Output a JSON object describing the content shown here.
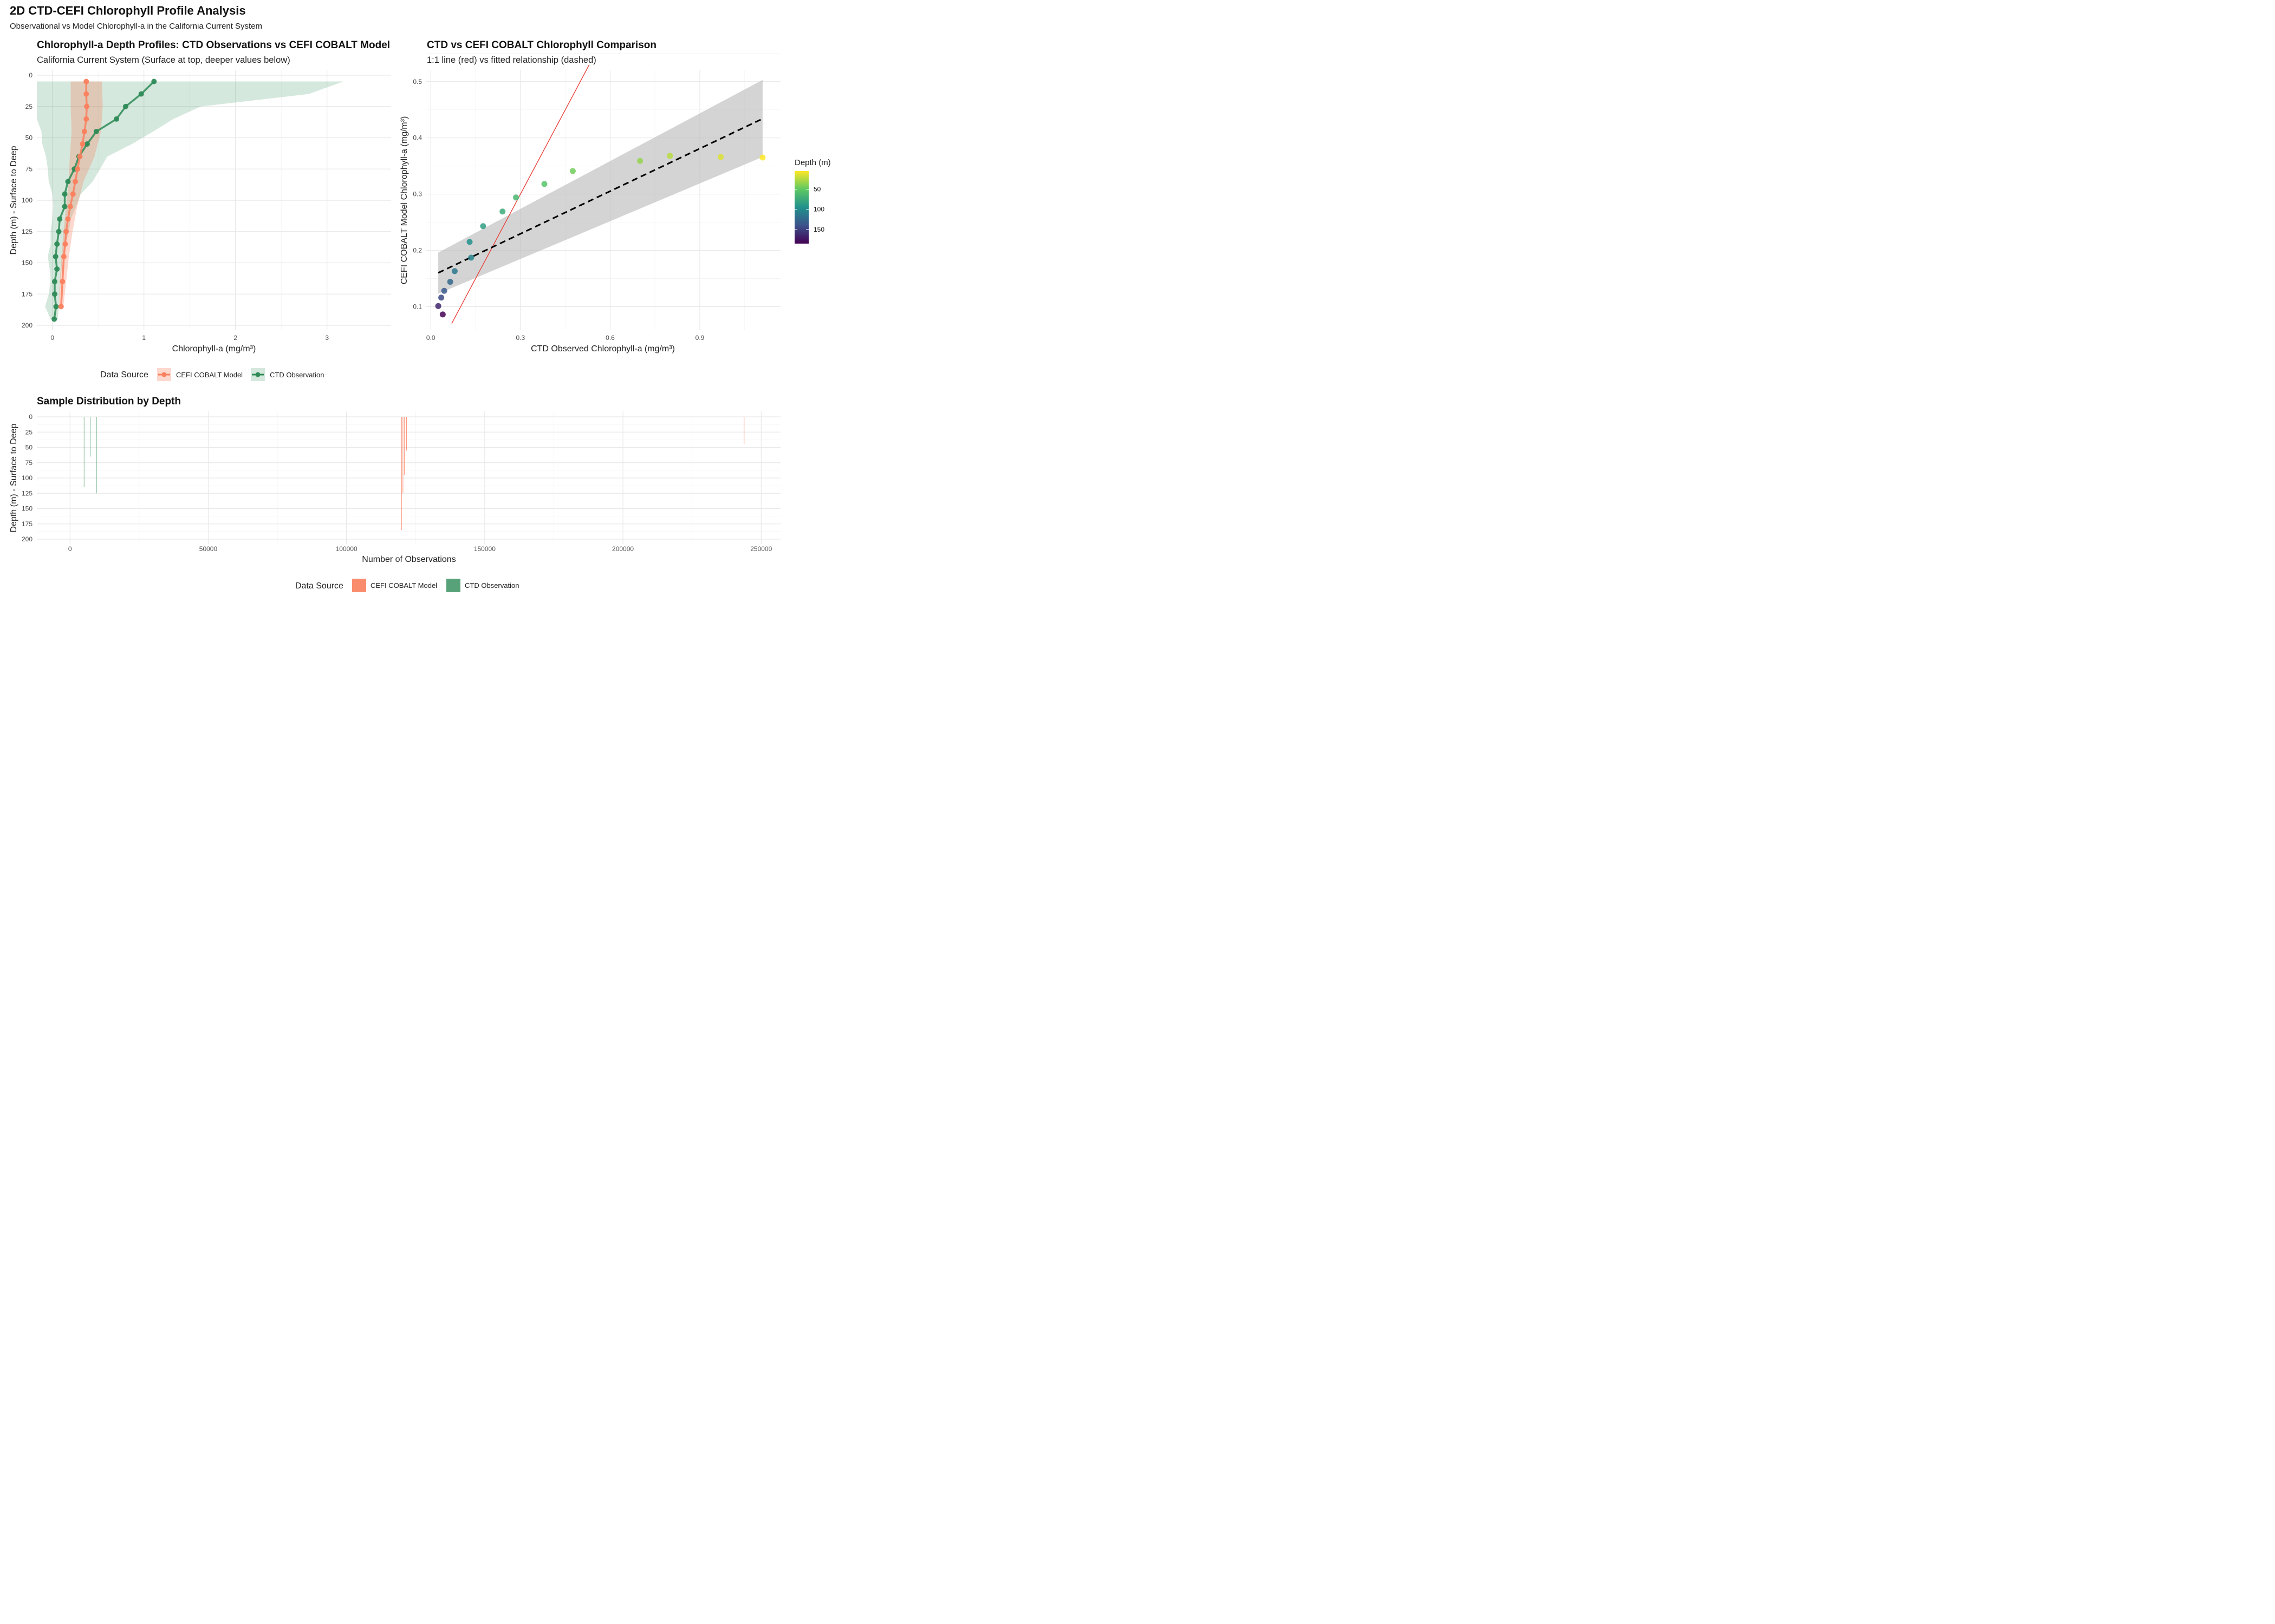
{
  "title": "2D CTD-CEFI Chlorophyll Profile Analysis",
  "subtitle": "Observational vs Model Chlorophyll-a in the California Current System",
  "colors": {
    "model": "#FA7F5E",
    "ctd": "#2E8B57",
    "fit": "#000000",
    "oneToOne": "#E8403A",
    "ribbon": "#BDBDBD",
    "grid": "#E8E8E8"
  },
  "chart_data": [
    {
      "type": "line",
      "title": "Chlorophyll-a Depth Profiles: CTD Observations vs CEFI COBALT Model",
      "subtitle": "California Current System (Surface at top, deeper values below)",
      "xlabel": "Chlorophyll-a (mg/m³)",
      "ylabel": "Depth (m) - Surface to Deep",
      "xlim": [
        -0.17,
        3.7
      ],
      "ylim": [
        200,
        0
      ],
      "xticks": [
        0,
        1,
        2,
        3
      ],
      "yticks": [
        0,
        25,
        50,
        75,
        100,
        125,
        150,
        175,
        200
      ],
      "grid": true,
      "legend": {
        "title": "Data Source",
        "position": "bottom"
      },
      "series": [
        {
          "name": "CEFI COBALT Model",
          "color": "#FA7F5E",
          "depth": [
            5,
            15,
            25,
            35,
            45,
            55,
            65,
            75,
            85,
            95,
            105,
            115,
            125,
            135,
            145,
            165,
            185
          ],
          "values": [
            0.37,
            0.37,
            0.375,
            0.37,
            0.35,
            0.33,
            0.3,
            0.275,
            0.25,
            0.225,
            0.195,
            0.17,
            0.15,
            0.14,
            0.125,
            0.11,
            0.095
          ],
          "band_depth": [
            5,
            25,
            45,
            65,
            85,
            105,
            125,
            145,
            165,
            185
          ],
          "band_low": [
            0.2,
            0.2,
            0.21,
            0.19,
            0.18,
            0.15,
            0.12,
            0.1,
            0.08,
            0.07
          ],
          "band_high": [
            0.54,
            0.55,
            0.53,
            0.46,
            0.34,
            0.27,
            0.22,
            0.18,
            0.15,
            0.12
          ]
        },
        {
          "name": "CTD Observation",
          "color": "#2E8B57",
          "depth": [
            5,
            15,
            25,
            35,
            45,
            55,
            65,
            75,
            85,
            95,
            105,
            115,
            125,
            135,
            145,
            155,
            165,
            175,
            185,
            195
          ],
          "values": [
            1.11,
            0.97,
            0.8,
            0.7,
            0.48,
            0.38,
            0.29,
            0.24,
            0.17,
            0.135,
            0.135,
            0.08,
            0.07,
            0.05,
            0.035,
            0.05,
            0.025,
            0.025,
            0.04,
            0.02
          ],
          "band_depth": [
            5,
            15,
            25,
            35,
            45,
            55,
            65,
            75,
            85,
            95,
            105,
            115,
            125,
            135,
            145,
            155,
            165,
            175,
            185,
            195
          ],
          "band_low": [
            -0.17,
            -0.17,
            -0.17,
            -0.17,
            -0.12,
            -0.11,
            -0.07,
            -0.05,
            -0.04,
            0.0,
            0.01,
            0.0,
            -0.02,
            -0.02,
            -0.05,
            -0.03,
            -0.02,
            -0.04,
            -0.08,
            -0.02
          ],
          "band_high": [
            3.18,
            2.8,
            1.62,
            1.32,
            1.1,
            0.87,
            0.6,
            0.52,
            0.44,
            0.31,
            0.26,
            0.2,
            0.18,
            0.14,
            0.11,
            0.1,
            0.09,
            0.08,
            0.07,
            0.06
          ]
        }
      ]
    },
    {
      "type": "scatter",
      "title": "CTD vs CEFI COBALT Chlorophyll Comparison",
      "subtitle": "1:1 line (red) vs fitted relationship (dashed)",
      "xlabel": "CTD Observed Chlorophyll-a (mg/m³)",
      "ylabel": "CEFI COBALT Model Chlorophyll-a (mg/m³)",
      "xlim": [
        -0.015,
        1.17
      ],
      "ylim": [
        0.058,
        0.52
      ],
      "xticks": [
        0.0,
        0.3,
        0.6,
        0.9
      ],
      "xtick_labels": [
        "0.0",
        "0.3",
        "0.6",
        "0.9"
      ],
      "yticks": [
        0.1,
        0.2,
        0.3,
        0.4,
        0.5
      ],
      "grid": true,
      "colorbar": {
        "title": "Depth (m)",
        "ticks": [
          50,
          100,
          150
        ],
        "min": 5,
        "max": 185,
        "position": "right"
      },
      "points": [
        {
          "x": 1.11,
          "y": 0.365,
          "depth": 5
        },
        {
          "x": 0.97,
          "y": 0.366,
          "depth": 15
        },
        {
          "x": 0.8,
          "y": 0.368,
          "depth": 25
        },
        {
          "x": 0.7,
          "y": 0.359,
          "depth": 35
        },
        {
          "x": 0.475,
          "y": 0.341,
          "depth": 45
        },
        {
          "x": 0.38,
          "y": 0.318,
          "depth": 55
        },
        {
          "x": 0.285,
          "y": 0.294,
          "depth": 65
        },
        {
          "x": 0.24,
          "y": 0.269,
          "depth": 75
        },
        {
          "x": 0.175,
          "y": 0.243,
          "depth": 85
        },
        {
          "x": 0.13,
          "y": 0.215,
          "depth": 95
        },
        {
          "x": 0.135,
          "y": 0.187,
          "depth": 105
        },
        {
          "x": 0.08,
          "y": 0.163,
          "depth": 115
        },
        {
          "x": 0.065,
          "y": 0.144,
          "depth": 125
        },
        {
          "x": 0.045,
          "y": 0.128,
          "depth": 135
        },
        {
          "x": 0.035,
          "y": 0.116,
          "depth": 145
        },
        {
          "x": 0.025,
          "y": 0.101,
          "depth": 165
        },
        {
          "x": 0.04,
          "y": 0.086,
          "depth": 185
        }
      ],
      "fit": {
        "x": [
          0.025,
          1.11
        ],
        "y": [
          0.16,
          0.434
        ],
        "band_low": [
          0.123,
          0.366
        ],
        "band_high": [
          0.196,
          0.503
        ]
      },
      "one_to_one": {
        "x": [
          0.07,
          0.53
        ],
        "y": [
          0.07,
          0.53
        ]
      }
    },
    {
      "type": "bar",
      "title": "Sample Distribution by Depth",
      "xlabel": "Number of Observations",
      "ylabel": "Depth (m) - Surface to Deep",
      "xlim": [
        -12000,
        257000
      ],
      "ylim": [
        200,
        0
      ],
      "xticks": [
        0,
        50000,
        100000,
        150000,
        200000,
        250000
      ],
      "yticks": [
        0,
        25,
        50,
        75,
        100,
        125,
        150,
        175,
        200
      ],
      "grid": true,
      "legend": {
        "title": "Data Source",
        "position": "bottom"
      },
      "series": [
        {
          "name": "CEFI COBALT Model",
          "color": "#FA7F5E",
          "bars": [
            {
              "x": 119900,
              "depth_top": 0,
              "depth_bottom": 185
            },
            {
              "x": 120400,
              "depth_top": 0,
              "depth_bottom": 125
            },
            {
              "x": 120900,
              "depth_top": 0,
              "depth_bottom": 95
            },
            {
              "x": 121700,
              "depth_top": 0,
              "depth_bottom": 55
            },
            {
              "x": 243800,
              "depth_top": 0,
              "depth_bottom": 45
            }
          ]
        },
        {
          "name": "CTD Observation",
          "color": "#2E8B57",
          "bars": [
            {
              "x": 5100,
              "depth_top": 0,
              "depth_bottom": 115
            },
            {
              "x": 7300,
              "depth_top": 0,
              "depth_bottom": 65
            },
            {
              "x": 9600,
              "depth_top": 0,
              "depth_bottom": 125
            }
          ]
        }
      ]
    }
  ]
}
